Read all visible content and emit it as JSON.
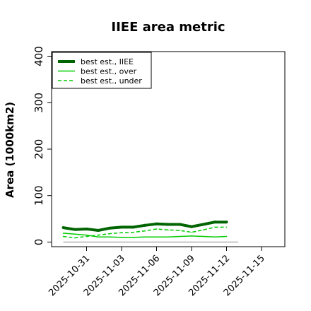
{
  "chart_data": {
    "type": "line",
    "title": "IIEE area metric",
    "xlabel": "",
    "ylabel": "Area (1000km2)",
    "x": [
      "2025-10-29",
      "2025-10-30",
      "2025-10-31",
      "2025-11-01",
      "2025-11-02",
      "2025-11-03",
      "2025-11-04",
      "2025-11-05",
      "2025-11-06",
      "2025-11-07",
      "2025-11-08",
      "2025-11-09",
      "2025-11-10",
      "2025-11-11",
      "2025-11-12",
      "2025-11-13"
    ],
    "x_ticks": [
      "2025-10-31",
      "2025-11-03",
      "2025-11-06",
      "2025-11-09",
      "2025-11-12",
      "2025-11-15"
    ],
    "xlim": [
      "2025-10-28",
      "2025-11-17"
    ],
    "ylim": [
      -10,
      410
    ],
    "y_ticks": [
      0,
      100,
      200,
      300,
      400
    ],
    "grid": false,
    "legend_position": "top-left",
    "reference_line": 0,
    "series": [
      {
        "name": "best est., IIEE",
        "color": "#006400",
        "style": "solid-thick",
        "values": [
          31,
          27,
          28,
          25,
          30,
          32,
          32,
          36,
          39,
          38,
          38,
          33,
          38,
          43,
          43,
          null
        ]
      },
      {
        "name": "best est., over",
        "color": "#00cc00",
        "style": "solid",
        "values": [
          19,
          17,
          15,
          11,
          11,
          10,
          10,
          11,
          11,
          11,
          12,
          13,
          12,
          11,
          12,
          null
        ]
      },
      {
        "name": "best est., under",
        "color": "#00cc00",
        "style": "dashed",
        "values": [
          12,
          9,
          12,
          15,
          18,
          20,
          21,
          24,
          28,
          26,
          25,
          21,
          26,
          32,
          32,
          null
        ]
      }
    ]
  }
}
